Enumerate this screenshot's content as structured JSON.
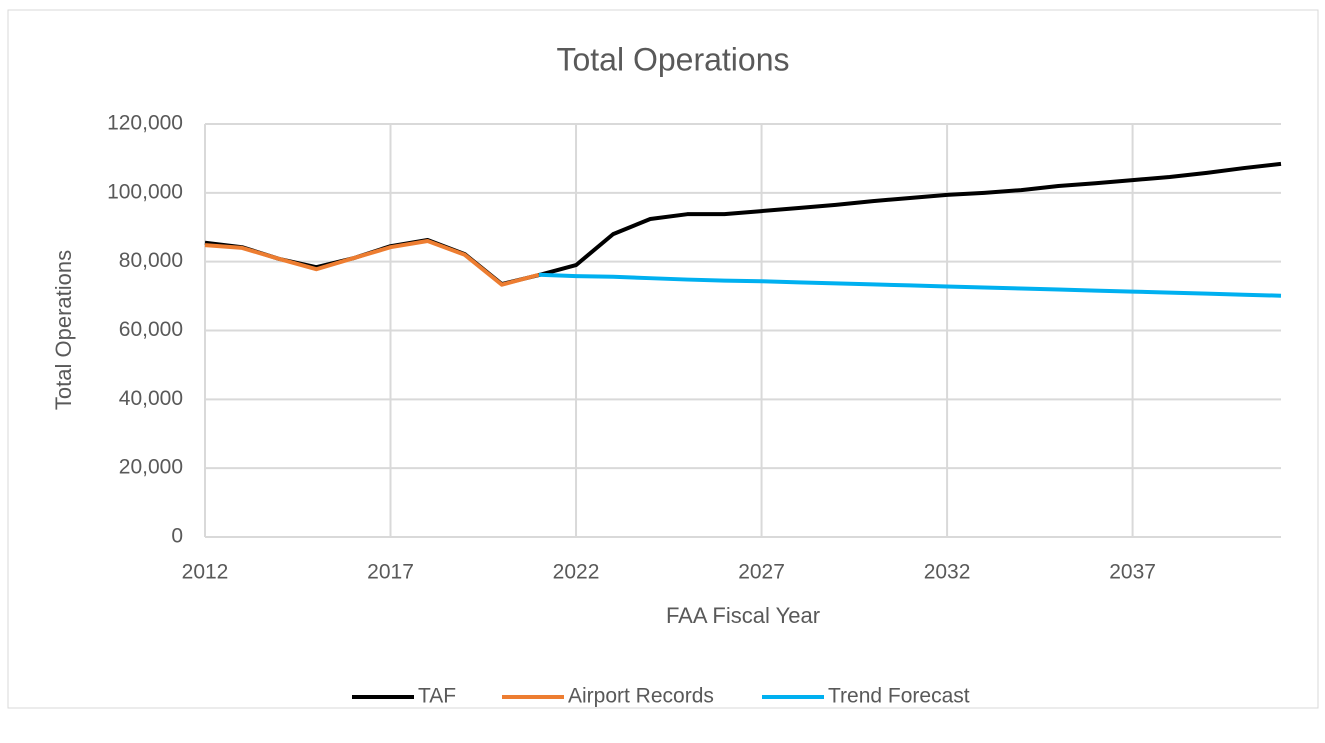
{
  "chart_data": {
    "type": "line",
    "title": "Total Operations",
    "x_label": "FAA Fiscal Year",
    "y_label": "Total Operations",
    "x": [
      2012,
      2013,
      2014,
      2015,
      2016,
      2017,
      2018,
      2019,
      2020,
      2021,
      2022,
      2023,
      2024,
      2025,
      2026,
      2027,
      2028,
      2029,
      2030,
      2031,
      2032,
      2033,
      2034,
      2035,
      2036,
      2037,
      2038,
      2039,
      2040,
      2041
    ],
    "series": [
      {
        "name": "TAF",
        "color": "#000000",
        "values": [
          85500,
          84200,
          80800,
          78400,
          81000,
          84500,
          86300,
          82200,
          73500,
          76100,
          79000,
          88000,
          92400,
          93800,
          93800,
          94700,
          95600,
          96500,
          97600,
          98500,
          99400,
          100000,
          100800,
          102000,
          102800,
          103700,
          104600,
          105800,
          107200,
          108400
        ]
      },
      {
        "name": "Airport Records",
        "color": "#ed7d31",
        "values": [
          84800,
          84000,
          80800,
          77800,
          81000,
          84200,
          86000,
          82000,
          73300,
          76200,
          null,
          null,
          null,
          null,
          null,
          null,
          null,
          null,
          null,
          null,
          null,
          null,
          null,
          null,
          null,
          null,
          null,
          null,
          null,
          null
        ]
      },
      {
        "name": "Trend Forecast",
        "color": "#00b0f0",
        "values": [
          null,
          null,
          null,
          null,
          null,
          null,
          null,
          null,
          null,
          76200,
          75800,
          75600,
          75200,
          74800,
          74500,
          74300,
          74000,
          73700,
          73400,
          73100,
          72800,
          72500,
          72200,
          71900,
          71600,
          71300,
          71000,
          70700,
          70400,
          70100
        ]
      }
    ],
    "xlim": [
      2012,
      2041
    ],
    "xticks": [
      2012,
      2017,
      2022,
      2027,
      2032,
      2037
    ],
    "ylim": [
      0,
      120000
    ],
    "yticks": [
      0,
      {
        "value": 20000,
        "label": "20,000"
      },
      {
        "value": 40000,
        "label": "40,000"
      },
      {
        "value": 60000,
        "label": "60,000"
      },
      {
        "value": 80000,
        "label": "80,000"
      },
      {
        "value": 100000,
        "label": "100,000"
      },
      {
        "value": 120000,
        "label": "120,000"
      }
    ],
    "grid": true,
    "legend": "bottom"
  }
}
